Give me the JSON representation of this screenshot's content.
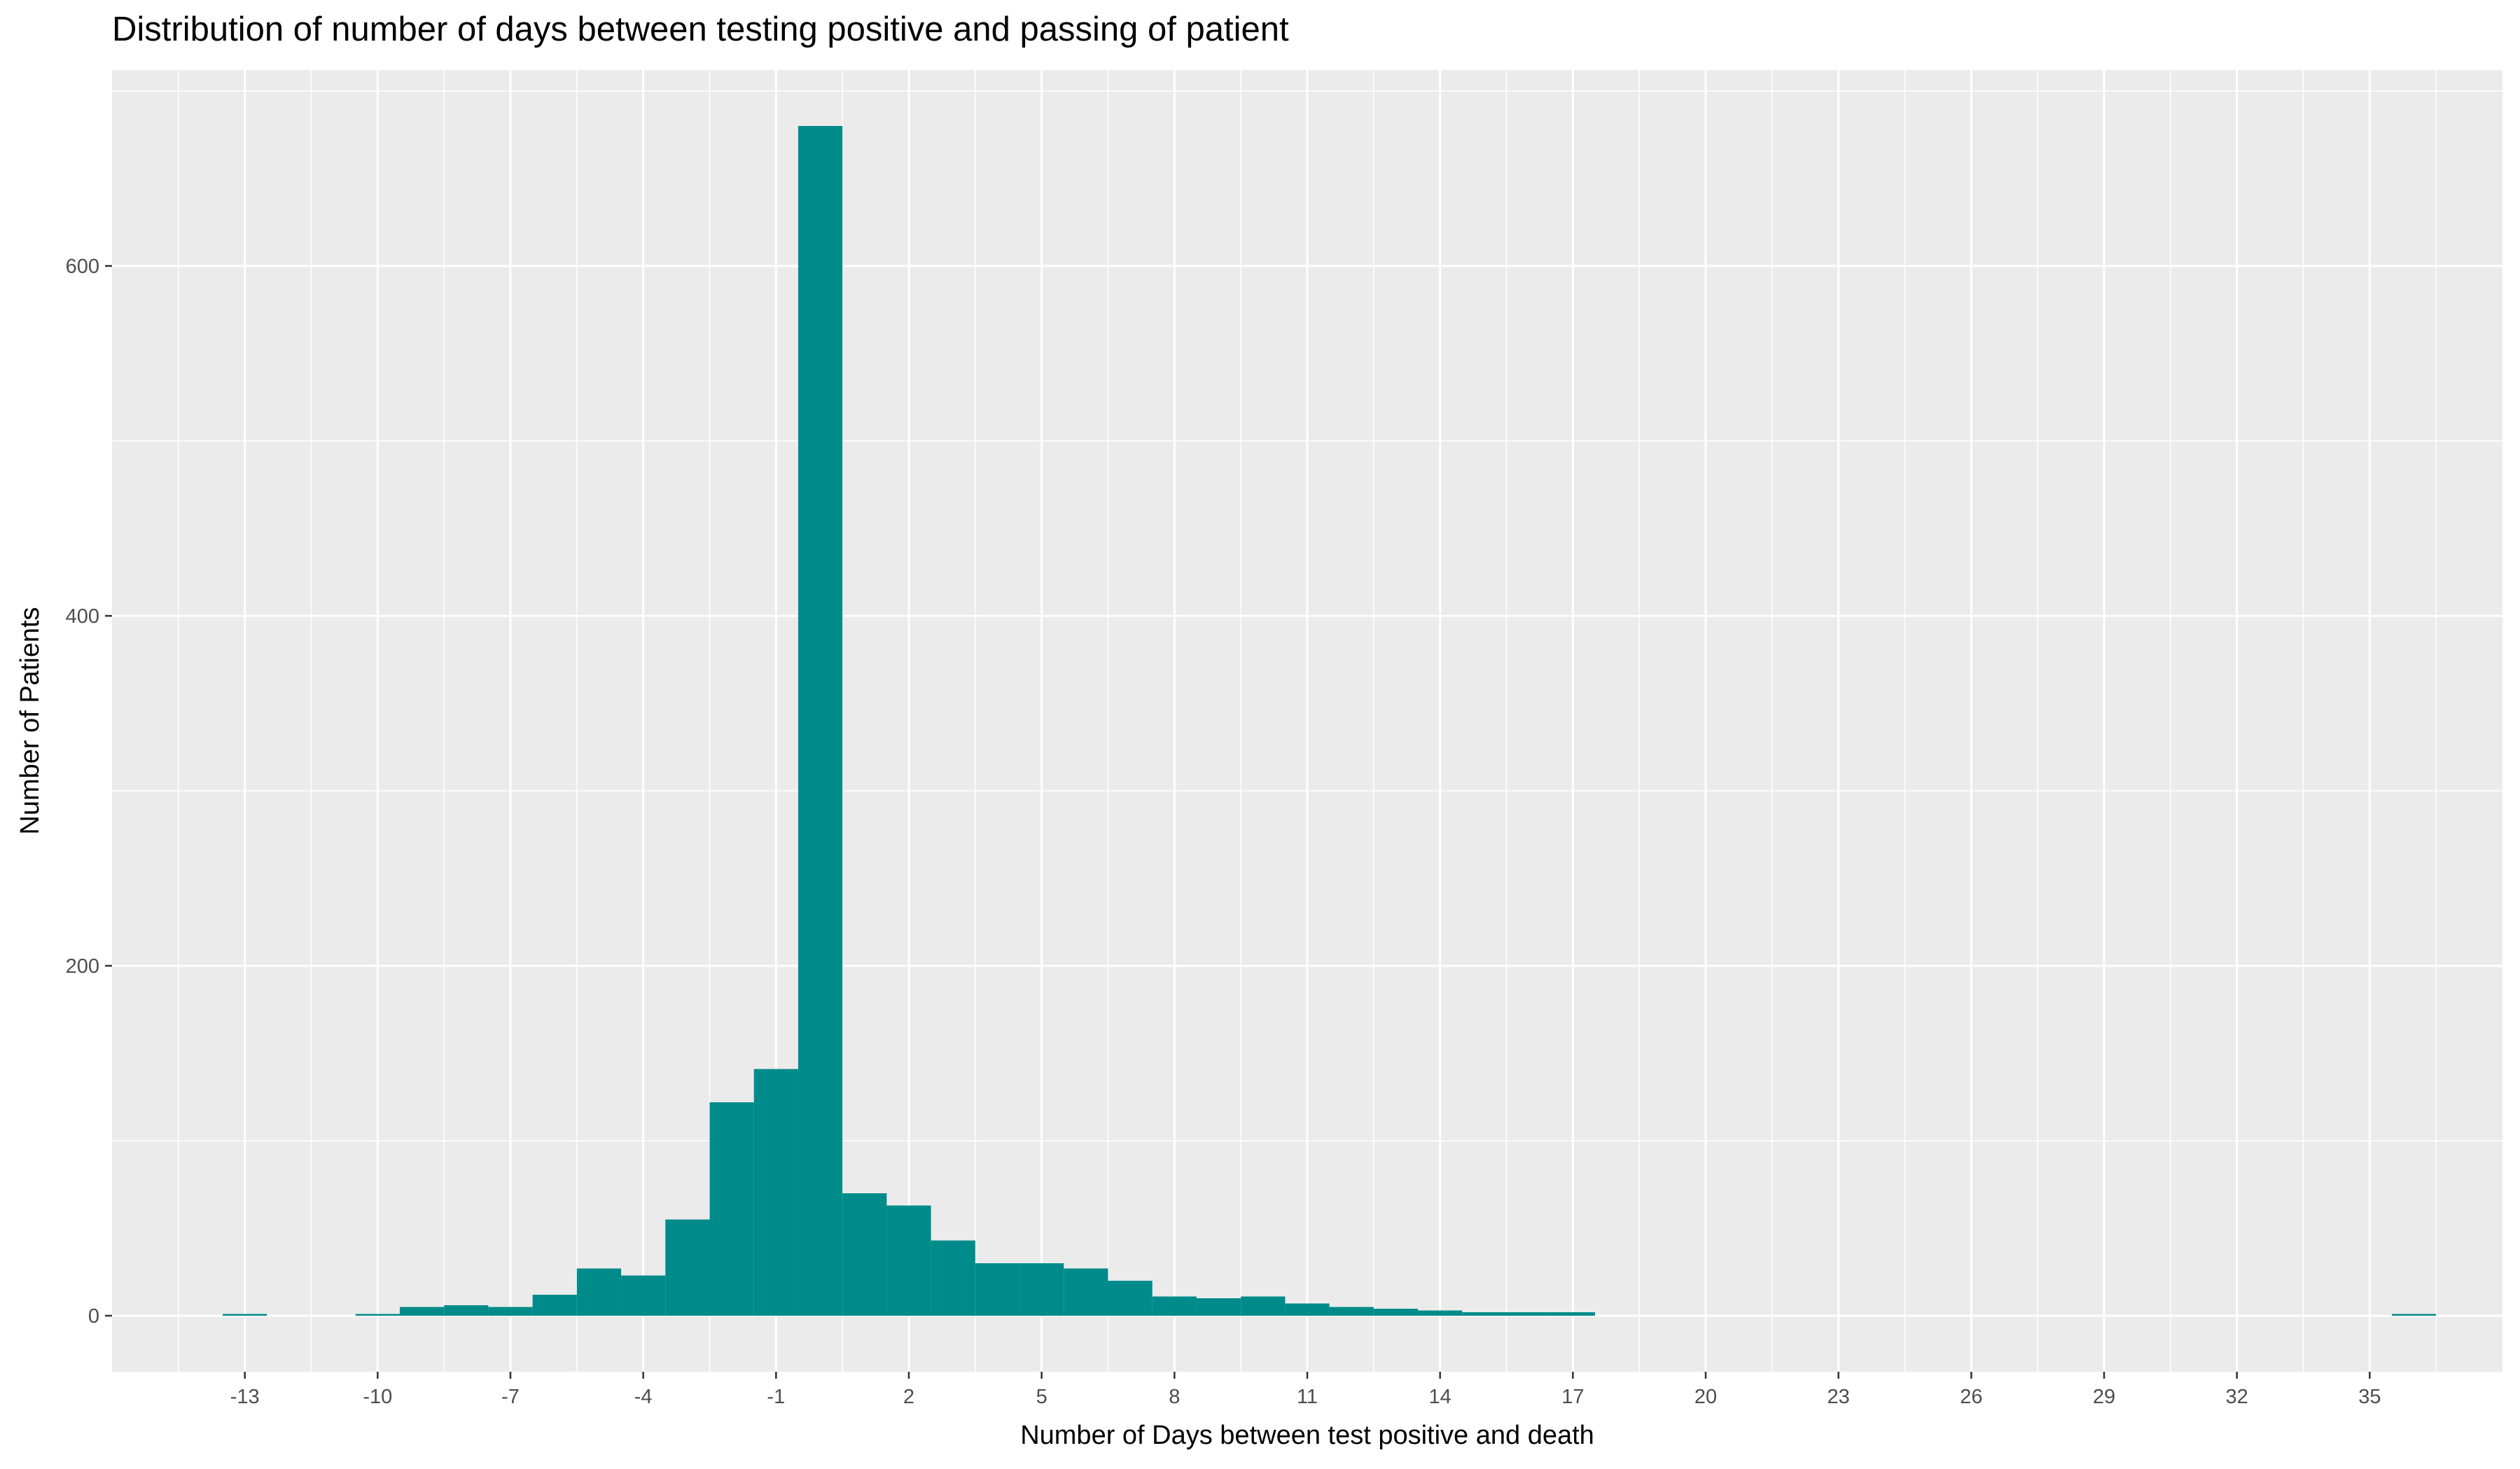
{
  "chart_data": {
    "type": "bar",
    "title": "Distribution of number of days between testing positive and passing of patient",
    "xlabel": "Number of Days between test positive and death",
    "ylabel": "Number of Patients",
    "x_ticks": [
      -13,
      -10,
      -7,
      -4,
      -1,
      2,
      5,
      8,
      11,
      14,
      17,
      20,
      23,
      26,
      29,
      32,
      35
    ],
    "y_ticks": [
      0,
      200,
      400,
      600
    ],
    "xlim": [
      -16.0,
      38.0
    ],
    "ylim": [
      -32,
      712
    ],
    "grid": true,
    "bar_color": "#008B8B",
    "panel_color": "#EBEBEB",
    "series": [
      {
        "x": [
          -13,
          -10,
          -9,
          -8,
          -7,
          -6,
          -5,
          -4,
          -3,
          -2,
          -1,
          0,
          1,
          2,
          3,
          4,
          5,
          6,
          7,
          8,
          9,
          10,
          11,
          12,
          13,
          14,
          15,
          16,
          17,
          36
        ],
        "values": [
          1,
          1,
          5,
          6,
          5,
          12,
          27,
          23,
          55,
          122,
          141,
          680,
          70,
          63,
          43,
          30,
          30,
          27,
          20,
          11,
          10,
          11,
          7,
          5,
          4,
          3,
          2,
          2,
          2,
          1
        ]
      }
    ]
  }
}
